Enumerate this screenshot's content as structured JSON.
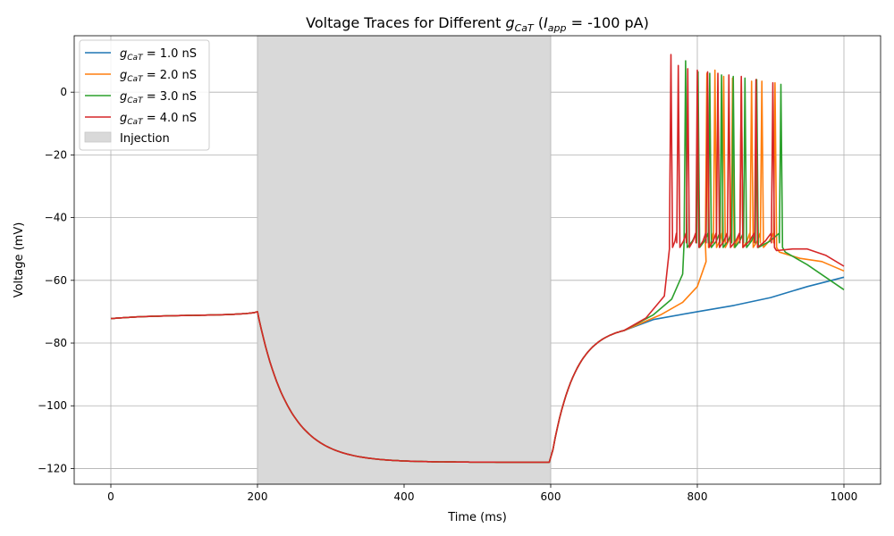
{
  "chart_data": {
    "type": "line",
    "title": "Voltage Traces for Different g_CaT (I_app = -100 pA)",
    "title_parts": {
      "prefix": "Voltage Traces for Different ",
      "g": "g",
      "g_sub": "CaT",
      "open": " (",
      "i": "I",
      "i_sub": "app",
      "rest": " = -100 pA)"
    },
    "xlabel": "Time (ms)",
    "ylabel": "Voltage (mV)",
    "xlim": [
      -50,
      1050
    ],
    "ylim": [
      -125,
      18
    ],
    "xticks": [
      0,
      200,
      400,
      600,
      800,
      1000
    ],
    "yticks": [
      -120,
      -100,
      -80,
      -60,
      -40,
      -20,
      0
    ],
    "grid": true,
    "legend_position": "top-left",
    "shaded_region": {
      "label": "Injection",
      "x_start": 200,
      "x_end": 600,
      "color": "#d9d9d9"
    },
    "series": [
      {
        "name": "g_CaT = 1.0 nS",
        "legend": {
          "g": "g",
          "sub": "CaT",
          "rest": " = 1.0 nS"
        },
        "color": "#1f77b4",
        "spikes": [],
        "tail": [
          [
            700,
            -76
          ],
          [
            740,
            -72.5
          ],
          [
            800,
            -70
          ],
          [
            850,
            -68
          ],
          [
            900,
            -65.5
          ],
          [
            950,
            -62
          ],
          [
            1000,
            -59
          ]
        ]
      },
      {
        "name": "g_CaT = 2.0 nS",
        "legend": {
          "g": "g",
          "sub": "CaT",
          "rest": " = 2.0 nS"
        },
        "color": "#ff7f0e",
        "spikes": [
          [
            813,
            6
          ],
          [
            824,
            7
          ],
          [
            836,
            5
          ],
          [
            848,
            4.5
          ],
          [
            860,
            4
          ],
          [
            874,
            3.5
          ],
          [
            888,
            3.5
          ],
          [
            906,
            3
          ]
        ],
        "tail": [
          [
            700,
            -76
          ],
          [
            750,
            -71
          ],
          [
            780,
            -67
          ],
          [
            800,
            -62
          ],
          [
            812,
            -54
          ]
        ],
        "after": [
          [
            912,
            -51
          ],
          [
            940,
            -53
          ],
          [
            970,
            -54
          ],
          [
            1000,
            -57
          ]
        ]
      },
      {
        "name": "g_CaT = 3.0 nS",
        "legend": {
          "g": "g",
          "sub": "CaT",
          "rest": " = 3.0 nS"
        },
        "color": "#2ca02c",
        "spikes": [
          [
            784,
            10
          ],
          [
            801,
            6.5
          ],
          [
            817,
            6
          ],
          [
            833,
            5.5
          ],
          [
            849,
            5
          ],
          [
            865,
            4.5
          ],
          [
            881,
            4
          ],
          [
            914,
            2.5
          ]
        ],
        "tail": [
          [
            700,
            -76
          ],
          [
            740,
            -71
          ],
          [
            765,
            -66
          ],
          [
            780,
            -58
          ]
        ],
        "after": [
          [
            920,
            -51
          ],
          [
            950,
            -55
          ],
          [
            1000,
            -63
          ]
        ]
      },
      {
        "name": "g_CaT = 4.0 nS",
        "legend": {
          "g": "g",
          "sub": "CaT",
          "rest": " = 4.0 nS"
        },
        "color": "#d62728",
        "spikes": [
          [
            764,
            12
          ],
          [
            774,
            8.5
          ],
          [
            787,
            7.5
          ],
          [
            800,
            7
          ],
          [
            814,
            6.5
          ],
          [
            828,
            6
          ],
          [
            843,
            5.5
          ],
          [
            860,
            5
          ],
          [
            880,
            4
          ],
          [
            903,
            3
          ]
        ],
        "tail": [
          [
            700,
            -76
          ],
          [
            730,
            -72
          ],
          [
            755,
            -65
          ],
          [
            762,
            -50
          ]
        ],
        "after": [
          [
            908,
            -50.5
          ],
          [
            930,
            -50
          ],
          [
            950,
            -50
          ],
          [
            975,
            -52
          ],
          [
            1000,
            -55.5
          ]
        ]
      }
    ]
  }
}
